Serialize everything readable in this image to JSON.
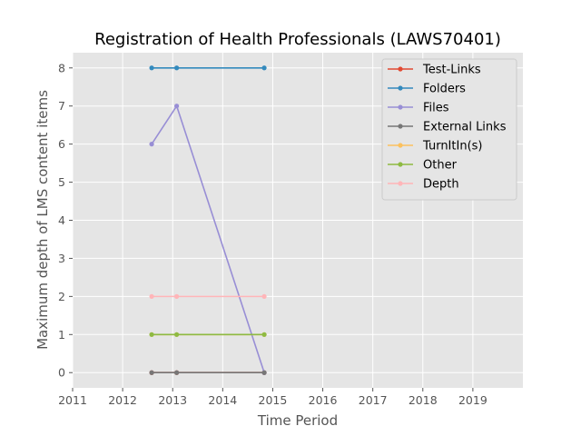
{
  "chart_data": {
    "type": "line",
    "title": "Registration of Health Professionals (LAWS70401)",
    "xlabel": "Time Period",
    "ylabel": "Maximum depth of LMS content items",
    "xlim": [
      2011,
      2020
    ],
    "ylim": [
      -0.4,
      8.4
    ],
    "xticks": [
      "2011",
      "2012",
      "2013",
      "2014",
      "2015",
      "2016",
      "2017",
      "2018",
      "2019"
    ],
    "yticks": [
      "0",
      "1",
      "2",
      "3",
      "4",
      "5",
      "6",
      "7",
      "8"
    ],
    "grid": true,
    "legend_position": "top-right",
    "x": [
      2012.58,
      2013.08,
      2014.83
    ],
    "series": [
      {
        "name": "Test-Links",
        "color": "#e24a33",
        "values": [
          0,
          0,
          0
        ]
      },
      {
        "name": "Folders",
        "color": "#348abd",
        "values": [
          8,
          8,
          8
        ]
      },
      {
        "name": "Files",
        "color": "#988ed5",
        "values": [
          6,
          7,
          0
        ]
      },
      {
        "name": "External Links",
        "color": "#777777",
        "values": [
          0,
          0,
          0
        ]
      },
      {
        "name": "TurnItIn(s)",
        "color": "#fbc15e",
        "values": [
          1,
          1,
          1
        ]
      },
      {
        "name": "Other",
        "color": "#8eba42",
        "values": [
          1,
          1,
          1
        ]
      },
      {
        "name": "Depth",
        "color": "#ffb5b8",
        "values": [
          2,
          2,
          2
        ]
      }
    ]
  }
}
